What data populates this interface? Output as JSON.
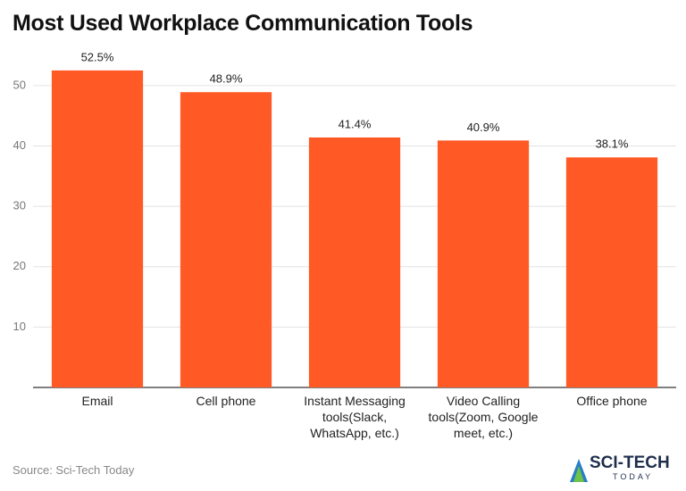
{
  "chart_data": {
    "type": "bar",
    "title": "Most Used Workplace Communication Tools",
    "categories": [
      "Email",
      "Cell phone",
      "Instant Messaging tools(Slack, WhatsApp, etc.)",
      "Video Calling tools(Zoom, Google meet, etc.)",
      "Office phone"
    ],
    "values": [
      52.5,
      48.9,
      41.4,
      40.9,
      38.1
    ],
    "value_labels": [
      "52.5%",
      "48.9%",
      "41.4%",
      "40.9%",
      "38.1%"
    ],
    "color": "#ff5a26",
    "ylim": [
      0,
      55
    ],
    "yticks": [
      10,
      20,
      30,
      40,
      50
    ],
    "grid": true,
    "source": "Source: Sci-Tech Today",
    "logo": {
      "main": "SCI-TECH",
      "sub": "TODAY"
    }
  }
}
